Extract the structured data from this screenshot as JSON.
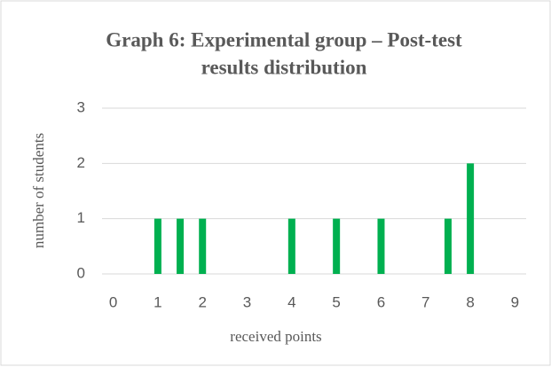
{
  "chart_data": {
    "type": "bar",
    "title": [
      "Graph 6: Experimental group – Post-test",
      "results distribution"
    ],
    "x_label": "received points",
    "y_label": "number of students",
    "x": [
      1,
      1.5,
      2,
      4,
      5,
      6,
      7.5,
      8
    ],
    "values": [
      1,
      1,
      1,
      1,
      1,
      1,
      1,
      2
    ],
    "color": "#00b050",
    "xlim": [
      -0.25,
      9.25
    ],
    "xticks": [
      0,
      1,
      2,
      3,
      4,
      5,
      6,
      7,
      8,
      9
    ],
    "ylim": [
      0,
      3
    ],
    "yticks": [
      0,
      1,
      2,
      3
    ],
    "grid": true
  }
}
